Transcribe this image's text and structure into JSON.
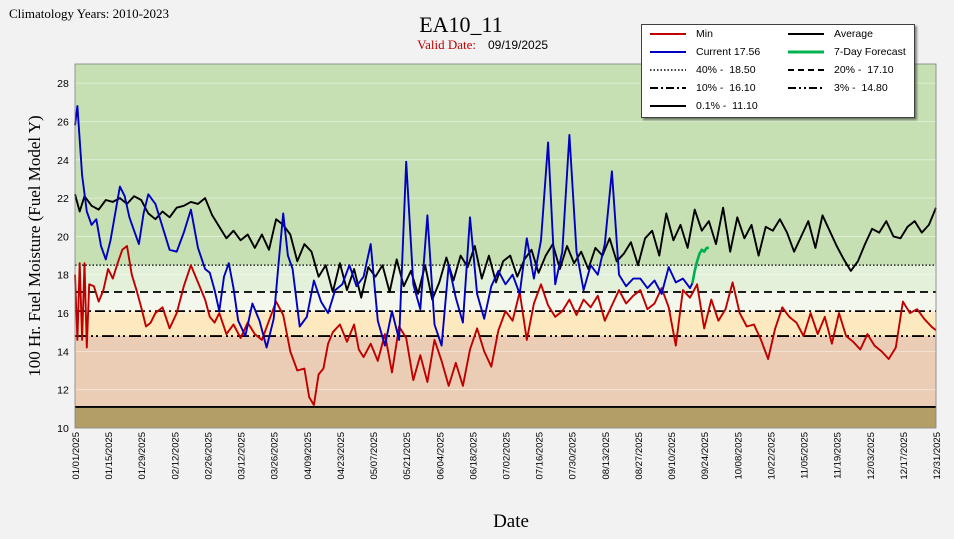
{
  "chart_data": {
    "type": "line",
    "header_note": "Climatology Years: 2010-2023",
    "title": "EA10_11",
    "valid_date_label": "Valid Date:",
    "valid_date": "09/19/2025",
    "xlabel": "Date",
    "ylabel": "100 Hr. Fuel Moisture (Fuel Model Y)",
    "ylim": [
      10,
      29
    ],
    "yticks": [
      10,
      12,
      14,
      16,
      18,
      20,
      22,
      24,
      26,
      28
    ],
    "xlim": [
      "01/01/2025",
      "12/31/2025"
    ],
    "xticks": [
      "01/01/2025",
      "01/15/2025",
      "01/29/2025",
      "02/12/2025",
      "02/26/2025",
      "03/12/2025",
      "03/26/2025",
      "04/09/2025",
      "04/23/2025",
      "05/07/2025",
      "05/21/2025",
      "06/04/2025",
      "06/18/2025",
      "07/02/2025",
      "07/16/2025",
      "07/30/2025",
      "08/13/2025",
      "08/27/2025",
      "09/10/2025",
      "09/24/2025",
      "10/08/2025",
      "10/22/2025",
      "11/05/2025",
      "11/19/2025",
      "12/03/2025",
      "12/17/2025",
      "12/31/2025"
    ],
    "bands": [
      {
        "from": 18.5,
        "to": 29,
        "color": "#c6e0b4"
      },
      {
        "from": 17.1,
        "to": 18.5,
        "color": "#e3f0da"
      },
      {
        "from": 16.1,
        "to": 17.1,
        "color": "#f4f7ec"
      },
      {
        "from": 14.8,
        "to": 16.1,
        "color": "#fde9bf"
      },
      {
        "from": 11.1,
        "to": 14.8,
        "color": "#eacdb4"
      },
      {
        "from": 10,
        "to": 11.1,
        "color": "#b39f66"
      }
    ],
    "thresholds": [
      {
        "name": "40% -  18.50",
        "value": 18.5,
        "dash": "1.5,2",
        "color": "#000000"
      },
      {
        "name": "20% -  17.10",
        "value": 17.1,
        "dash": "8,5",
        "color": "#000000"
      },
      {
        "name": "10% -  16.10",
        "value": 16.1,
        "dash": "10,4,2,4",
        "color": "#000000"
      },
      {
        "name": "3% -  14.80",
        "value": 14.8,
        "dash": "12,4,2,3,2,4",
        "color": "#000000"
      },
      {
        "name": "0.1% -  11.10",
        "value": 11.1,
        "dash": "",
        "color": "#000000"
      }
    ],
    "series": [
      {
        "name": "Min",
        "color": "#c00000",
        "x": [
          "01/01/2025",
          "01/02/2025",
          "01/03/2025",
          "01/04/2025",
          "01/05/2025",
          "01/06/2025",
          "01/07/2025",
          "01/09/2025",
          "01/11/2025",
          "01/13/2025",
          "01/15/2025",
          "01/17/2025",
          "01/19/2025",
          "01/21/2025",
          "01/23/2025",
          "01/25/2025",
          "01/27/2025",
          "01/29/2025",
          "01/31/2025",
          "02/02/2025",
          "02/04/2025",
          "02/07/2025",
          "02/10/2025",
          "02/13/2025",
          "02/16/2025",
          "02/19/2025",
          "02/22/2025",
          "02/25/2025",
          "02/27/2025",
          "03/01/2025",
          "03/03/2025",
          "03/06/2025",
          "03/09/2025",
          "03/12/2025",
          "03/15/2025",
          "03/18/2025",
          "03/21/2025",
          "03/24/2025",
          "03/27/2025",
          "03/30/2025",
          "04/02/2025",
          "04/05/2025",
          "04/08/2025",
          "04/10/2025",
          "04/12/2025",
          "04/14/2025",
          "04/16/2025",
          "04/18/2025",
          "04/20/2025",
          "04/23/2025",
          "04/26/2025",
          "04/29/2025",
          "05/01/2025",
          "05/03/2025",
          "05/06/2025",
          "05/09/2025",
          "05/12/2025",
          "05/15/2025",
          "05/18/2025",
          "05/21/2025",
          "05/24/2025",
          "05/27/2025",
          "05/30/2025",
          "06/02/2025",
          "06/05/2025",
          "06/08/2025",
          "06/11/2025",
          "06/14/2025",
          "06/17/2025",
          "06/20/2025",
          "06/23/2025",
          "06/26/2025",
          "06/29/2025",
          "07/02/2025",
          "07/05/2025",
          "07/08/2025",
          "07/11/2025",
          "07/14/2025",
          "07/17/2025",
          "07/20/2025",
          "07/23/2025",
          "07/26/2025",
          "07/29/2025",
          "08/01/2025",
          "08/04/2025",
          "08/07/2025",
          "08/10/2025",
          "08/13/2025",
          "08/16/2025",
          "08/19/2025",
          "08/22/2025",
          "08/25/2025",
          "08/28/2025",
          "08/31/2025",
          "09/03/2025",
          "09/06/2025",
          "09/09/2025",
          "09/12/2025",
          "09/15/2025",
          "09/18/2025",
          "09/21/2025",
          "09/24/2025",
          "09/27/2025",
          "09/30/2025",
          "10/03/2025",
          "10/06/2025",
          "10/09/2025",
          "10/12/2025",
          "10/15/2025",
          "10/18/2025",
          "10/21/2025",
          "10/24/2025",
          "10/27/2025",
          "10/30/2025",
          "11/02/2025",
          "11/05/2025",
          "11/08/2025",
          "11/11/2025",
          "11/14/2025",
          "11/17/2025",
          "11/20/2025",
          "11/23/2025",
          "11/26/2025",
          "11/29/2025",
          "12/02/2025",
          "12/05/2025",
          "12/08/2025",
          "12/11/2025",
          "12/14/2025",
          "12/17/2025",
          "12/20/2025",
          "12/23/2025",
          "12/26/2025",
          "12/29/2025",
          "12/31/2025"
        ],
        "values": [
          18.0,
          14.6,
          18.6,
          14.6,
          18.6,
          14.2,
          17.5,
          17.4,
          16.6,
          17.2,
          18.3,
          17.8,
          18.6,
          19.3,
          19.5,
          18.0,
          17.2,
          16.3,
          15.3,
          15.5,
          16.0,
          16.3,
          15.2,
          16.0,
          17.4,
          18.5,
          17.6,
          16.7,
          15.8,
          15.5,
          16.0,
          14.9,
          15.4,
          14.7,
          15.5,
          14.9,
          14.6,
          15.6,
          16.6,
          15.9,
          14.0,
          13.0,
          13.1,
          11.6,
          11.2,
          12.8,
          13.1,
          14.4,
          15.0,
          15.4,
          14.5,
          15.4,
          14.1,
          13.7,
          14.4,
          13.5,
          14.9,
          12.9,
          15.3,
          14.7,
          12.5,
          13.8,
          12.4,
          14.6,
          13.5,
          12.2,
          13.4,
          12.2,
          14.1,
          15.2,
          14.0,
          13.2,
          15.1,
          16.1,
          15.6,
          17.1,
          14.6,
          16.5,
          17.5,
          16.4,
          15.8,
          16.1,
          16.7,
          15.9,
          16.7,
          16.3,
          16.9,
          15.6,
          16.4,
          17.2,
          16.5,
          16.9,
          17.2,
          16.2,
          16.5,
          17.3,
          16.3,
          14.3,
          17.2,
          16.8,
          17.5,
          15.2,
          16.7,
          15.6,
          16.2,
          17.6,
          16.0,
          15.3,
          15.4,
          14.6,
          13.6,
          15.2,
          16.3,
          15.8,
          15.5,
          14.8,
          16.0,
          14.9,
          15.8,
          14.4,
          16.0,
          14.8,
          14.5,
          14.1,
          14.9,
          14.3,
          14.0,
          13.6,
          14.2,
          16.6,
          16.0,
          16.2,
          15.7,
          15.3,
          15.1
        ]
      },
      {
        "name": "Current 17.56",
        "color": "#0000c0",
        "x": [
          "01/01/2025",
          "01/02/2025",
          "01/04/2025",
          "01/06/2025",
          "01/08/2025",
          "01/10/2025",
          "01/12/2025",
          "01/14/2025",
          "01/16/2025",
          "01/18/2025",
          "01/20/2025",
          "01/22/2025",
          "01/24/2025",
          "01/26/2025",
          "01/28/2025",
          "01/30/2025",
          "02/01/2025",
          "02/04/2025",
          "02/07/2025",
          "02/10/2025",
          "02/13/2025",
          "02/16/2025",
          "02/19/2025",
          "02/22/2025",
          "02/25/2025",
          "02/27/2025",
          "03/01/2025",
          "03/03/2025",
          "03/05/2025",
          "03/07/2025",
          "03/09/2025",
          "03/11/2025",
          "03/14/2025",
          "03/17/2025",
          "03/20/2025",
          "03/23/2025",
          "03/26/2025",
          "03/28/2025",
          "03/30/2025",
          "04/01/2025",
          "04/03/2025",
          "04/06/2025",
          "04/09/2025",
          "04/12/2025",
          "04/15/2025",
          "04/18/2025",
          "04/21/2025",
          "04/24/2025",
          "04/27/2025",
          "04/30/2025",
          "05/03/2025",
          "05/06/2025",
          "05/09/2025",
          "05/12/2025",
          "05/15/2025",
          "05/18/2025",
          "05/21/2025",
          "05/24/2025",
          "05/27/2025",
          "05/30/2025",
          "06/02/2025",
          "06/05/2025",
          "06/08/2025",
          "06/11/2025",
          "06/14/2025",
          "06/17/2025",
          "06/20/2025",
          "06/23/2025",
          "06/26/2025",
          "06/29/2025",
          "07/02/2025",
          "07/05/2025",
          "07/08/2025",
          "07/11/2025",
          "07/14/2025",
          "07/17/2025",
          "07/20/2025",
          "07/23/2025",
          "07/26/2025",
          "07/29/2025",
          "08/01/2025",
          "08/04/2025",
          "08/07/2025",
          "08/10/2025",
          "08/13/2025",
          "08/16/2025",
          "08/19/2025",
          "08/22/2025",
          "08/25/2025",
          "08/28/2025",
          "08/31/2025",
          "09/03/2025",
          "09/06/2025",
          "09/09/2025",
          "09/12/2025",
          "09/15/2025",
          "09/18/2025",
          "09/19/2025"
        ],
        "values": [
          25.8,
          26.8,
          23.2,
          21.3,
          20.6,
          20.9,
          19.5,
          18.8,
          19.8,
          21.2,
          22.6,
          22.1,
          21.0,
          20.3,
          19.6,
          21.2,
          22.2,
          21.7,
          20.5,
          19.3,
          19.2,
          20.2,
          21.4,
          19.4,
          18.3,
          18.1,
          17.2,
          16.1,
          17.9,
          18.6,
          17.3,
          15.6,
          14.8,
          16.5,
          15.6,
          14.2,
          15.7,
          18.5,
          21.2,
          19.0,
          18.3,
          15.3,
          15.8,
          17.7,
          16.6,
          16.0,
          17.2,
          17.5,
          18.5,
          17.4,
          17.9,
          19.6,
          15.6,
          14.3,
          16.1,
          14.6,
          23.9,
          17.5,
          16.2,
          21.1,
          15.4,
          14.3,
          18.5,
          16.8,
          15.5,
          21.0,
          17.0,
          15.7,
          17.4,
          18.2,
          17.5,
          18.0,
          17.0,
          19.9,
          17.8,
          19.8,
          24.9,
          17.5,
          19.2,
          25.3,
          19.2,
          17.2,
          18.5,
          18.0,
          19.6,
          23.4,
          18.0,
          17.4,
          17.8,
          17.8,
          17.3,
          17.7,
          17.0,
          18.4,
          17.6,
          17.8,
          17.3,
          17.56
        ]
      },
      {
        "name": "Average",
        "color": "#000000",
        "x": [
          "01/01/2025",
          "01/03/2025",
          "01/05/2025",
          "01/08/2025",
          "01/11/2025",
          "01/14/2025",
          "01/17/2025",
          "01/20/2025",
          "01/23/2025",
          "01/26/2025",
          "01/29/2025",
          "02/01/2025",
          "02/04/2025",
          "02/07/2025",
          "02/10/2025",
          "02/13/2025",
          "02/16/2025",
          "02/19/2025",
          "02/22/2025",
          "02/25/2025",
          "02/28/2025",
          "03/03/2025",
          "03/06/2025",
          "03/09/2025",
          "03/12/2025",
          "03/15/2025",
          "03/18/2025",
          "03/21/2025",
          "03/24/2025",
          "03/27/2025",
          "03/30/2025",
          "04/02/2025",
          "04/05/2025",
          "04/08/2025",
          "04/11/2025",
          "04/14/2025",
          "04/17/2025",
          "04/20/2025",
          "04/23/2025",
          "04/26/2025",
          "04/29/2025",
          "05/02/2025",
          "05/05/2025",
          "05/08/2025",
          "05/11/2025",
          "05/14/2025",
          "05/17/2025",
          "05/20/2025",
          "05/23/2025",
          "05/26/2025",
          "05/29/2025",
          "06/01/2025",
          "06/04/2025",
          "06/07/2025",
          "06/10/2025",
          "06/13/2025",
          "06/16/2025",
          "06/19/2025",
          "06/22/2025",
          "06/25/2025",
          "06/28/2025",
          "07/01/2025",
          "07/04/2025",
          "07/07/2025",
          "07/10/2025",
          "07/13/2025",
          "07/16/2025",
          "07/19/2025",
          "07/22/2025",
          "07/25/2025",
          "07/28/2025",
          "07/31/2025",
          "08/03/2025",
          "08/06/2025",
          "08/09/2025",
          "08/12/2025",
          "08/15/2025",
          "08/18/2025",
          "08/21/2025",
          "08/24/2025",
          "08/27/2025",
          "08/30/2025",
          "09/02/2025",
          "09/05/2025",
          "09/08/2025",
          "09/11/2025",
          "09/14/2025",
          "09/17/2025",
          "09/20/2025",
          "09/23/2025",
          "09/26/2025",
          "09/29/2025",
          "10/02/2025",
          "10/05/2025",
          "10/08/2025",
          "10/11/2025",
          "10/14/2025",
          "10/17/2025",
          "10/20/2025",
          "10/23/2025",
          "10/26/2025",
          "10/29/2025",
          "11/01/2025",
          "11/04/2025",
          "11/07/2025",
          "11/10/2025",
          "11/13/2025",
          "11/16/2025",
          "11/19/2025",
          "11/22/2025",
          "11/25/2025",
          "11/28/2025",
          "12/01/2025",
          "12/04/2025",
          "12/07/2025",
          "12/10/2025",
          "12/13/2025",
          "12/16/2025",
          "12/19/2025",
          "12/22/2025",
          "12/25/2025",
          "12/28/2025",
          "12/31/2025"
        ],
        "values": [
          22.2,
          21.3,
          22.1,
          21.6,
          21.4,
          21.9,
          21.8,
          22.0,
          21.7,
          22.1,
          21.9,
          21.2,
          20.9,
          21.3,
          21.0,
          21.5,
          21.6,
          21.8,
          21.7,
          22.0,
          21.1,
          20.5,
          19.9,
          20.3,
          19.8,
          20.1,
          19.4,
          20.1,
          19.3,
          20.9,
          20.6,
          20.1,
          18.7,
          19.6,
          19.2,
          17.9,
          18.5,
          17.1,
          18.6,
          17.2,
          18.3,
          16.8,
          18.4,
          17.9,
          18.5,
          17.1,
          18.8,
          17.4,
          18.2,
          17.0,
          18.5,
          16.7,
          17.6,
          18.9,
          17.7,
          19.0,
          18.4,
          19.5,
          17.8,
          19.0,
          17.6,
          18.7,
          19.0,
          17.9,
          18.8,
          19.3,
          18.1,
          19.0,
          19.6,
          18.3,
          19.5,
          18.6,
          19.2,
          18.3,
          19.4,
          19.0,
          19.9,
          18.7,
          19.1,
          19.7,
          18.5,
          19.9,
          20.3,
          19.0,
          21.2,
          19.8,
          20.6,
          19.4,
          21.4,
          20.3,
          20.8,
          19.6,
          21.5,
          19.2,
          21.0,
          19.9,
          20.6,
          19.0,
          20.5,
          20.3,
          20.9,
          20.2,
          19.2,
          20.0,
          20.8,
          19.4,
          21.1,
          20.3,
          19.5,
          18.8,
          18.2,
          18.7,
          19.6,
          20.4,
          20.2,
          20.8,
          20.0,
          19.9,
          20.5,
          20.8,
          20.2,
          20.6,
          21.5
        ]
      },
      {
        "name": "7-Day Forecast",
        "color": "#00b050",
        "x": [
          "09/19/2025",
          "09/20/2025",
          "09/21/2025",
          "09/22/2025",
          "09/23/2025",
          "09/24/2025",
          "09/25/2025",
          "09/26/2025"
        ],
        "values": [
          17.56,
          18.2,
          18.7,
          19.1,
          19.3,
          19.2,
          19.4,
          19.4
        ]
      }
    ]
  }
}
